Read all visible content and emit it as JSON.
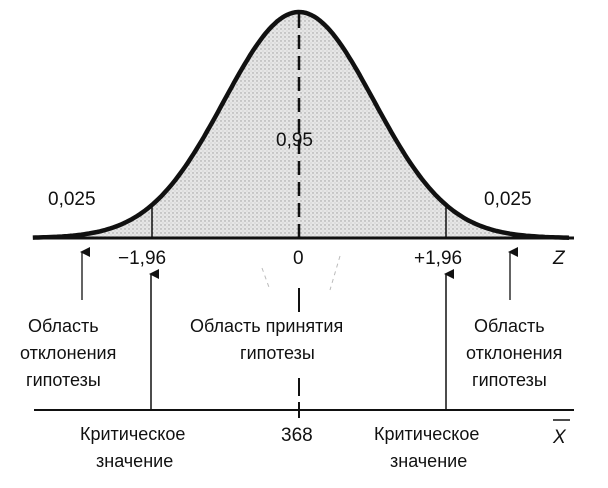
{
  "chart": {
    "type": "normal-distribution",
    "mean": 0,
    "critical_left": -1.96,
    "critical_right": 1.96,
    "axis_z_label": "Z",
    "axis_x_label": "X",
    "x_mean_value": "368"
  },
  "labels": {
    "center_prob": "0,95",
    "tail_left_prob": "0,025",
    "tail_right_prob": "0,025",
    "tick_left": "−1,96",
    "tick_center": "0",
    "tick_right": "+1,96",
    "tick_x_mean": "368",
    "z_axis": "Z",
    "x_axis": "X"
  },
  "regions": {
    "left_reject": [
      "Область",
      "отклонения",
      "гипотезы"
    ],
    "accept": [
      "Область принятия",
      "гипотезы"
    ],
    "right_reject": [
      "Область",
      "отклонения",
      "гипотезы"
    ]
  },
  "critical": {
    "left": [
      "Критическое",
      "значение"
    ],
    "right": [
      "Критическое",
      "значение"
    ]
  }
}
